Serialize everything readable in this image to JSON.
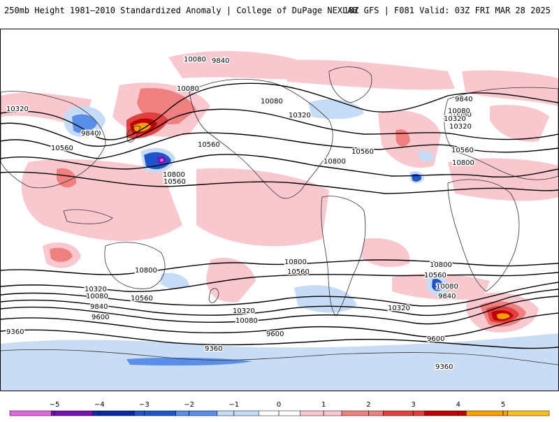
{
  "header": {
    "title": "250mb Height 1981–2010 Standardized Anomaly | College of DuPage NEXLAB",
    "run_info": "18Z GFS | F081 Valid: 03Z FRI MAR 28 2025"
  },
  "map": {
    "contour_labels": [
      "9840",
      "10080",
      "10320",
      "9840",
      "10560",
      "10080",
      "10320",
      "10560",
      "10800",
      "10080",
      "10320",
      "10560",
      "10800",
      "9840",
      "10080",
      "10320",
      "10560",
      "10800",
      "10800",
      "10560",
      "10320",
      "10080",
      "9840",
      "9600",
      "9360",
      "10560",
      "10320",
      "10080",
      "10800",
      "10560",
      "10320",
      "10080",
      "9840",
      "10800",
      "10560",
      "10080",
      "9840",
      "9600",
      "9600",
      "9360",
      "9360"
    ],
    "colors": {
      "land_outline": "#333333",
      "contour": "#000000",
      "antarctica_ice": "#c8dcf4"
    }
  },
  "colorbar": {
    "ticks": [
      "−5",
      "−4",
      "−3",
      "−2",
      "−1",
      "0",
      "1",
      "2",
      "3",
      "4",
      "5"
    ],
    "colors": [
      "#e066e0",
      "#7a10b0",
      "#0a2aa8",
      "#1f55cc",
      "#5a8ee8",
      "#c6dcf6",
      "#ffffff",
      "#f9c8cf",
      "#f08080",
      "#e04040",
      "#c00000",
      "#f7a000",
      "#f7c020"
    ]
  }
}
